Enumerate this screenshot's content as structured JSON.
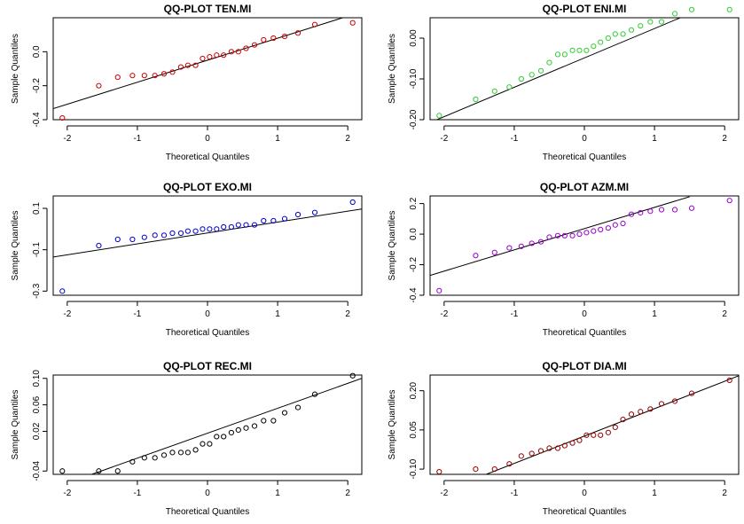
{
  "chart_data": [
    {
      "type": "scatter",
      "title": "QQ-PLOT TEN.MI",
      "xlabel": "Theoretical Quantiles",
      "ylabel": "Sample Quantiles",
      "color": "#cc0000",
      "xlim": [
        -2.2,
        2.2
      ],
      "ylim": [
        -0.4,
        0.2
      ],
      "xticks": [
        -2,
        -1,
        0,
        1,
        2
      ],
      "xticklabels": [
        "-2",
        "-1",
        "0",
        "1",
        "2"
      ],
      "yticks": [
        -0.4,
        -0.2,
        0.0
      ],
      "yticklabels": [
        "-0.4",
        "-0.2",
        "0.0"
      ],
      "points": [
        [
          -2.07,
          -0.39
        ],
        [
          -1.55,
          -0.2
        ],
        [
          -1.28,
          -0.15
        ],
        [
          -1.07,
          -0.14
        ],
        [
          -0.9,
          -0.14
        ],
        [
          -0.75,
          -0.14
        ],
        [
          -0.62,
          -0.13
        ],
        [
          -0.5,
          -0.12
        ],
        [
          -0.38,
          -0.09
        ],
        [
          -0.28,
          -0.08
        ],
        [
          -0.17,
          -0.08
        ],
        [
          -0.07,
          -0.04
        ],
        [
          0.03,
          -0.03
        ],
        [
          0.13,
          -0.02
        ],
        [
          0.23,
          -0.02
        ],
        [
          0.34,
          0.0
        ],
        [
          0.44,
          0.0
        ],
        [
          0.55,
          0.02
        ],
        [
          0.67,
          0.04
        ],
        [
          0.8,
          0.07
        ],
        [
          0.94,
          0.08
        ],
        [
          1.1,
          0.09
        ],
        [
          1.29,
          0.11
        ],
        [
          1.53,
          0.16
        ],
        [
          2.07,
          0.17
        ]
      ],
      "line": [
        [
          -2.2,
          -0.335
        ],
        [
          2.2,
          0.235
        ]
      ]
    },
    {
      "type": "scatter",
      "title": "QQ-PLOT ENI.MI",
      "xlabel": "Theoretical Quantiles",
      "ylabel": "Sample Quantiles",
      "color": "#33cc33",
      "xlim": [
        -2.2,
        2.2
      ],
      "ylim": [
        -0.2,
        0.05
      ],
      "xticks": [
        -2,
        -1,
        0,
        1,
        2
      ],
      "xticklabels": [
        "-2",
        "-1",
        "0",
        "1",
        "2"
      ],
      "yticks": [
        -0.2,
        -0.1,
        0.0
      ],
      "yticklabels": [
        "-0.20",
        "-0.10",
        "0.00"
      ],
      "points": [
        [
          -2.07,
          -0.19
        ],
        [
          -1.55,
          -0.15
        ],
        [
          -1.28,
          -0.13
        ],
        [
          -1.07,
          -0.12
        ],
        [
          -0.9,
          -0.1
        ],
        [
          -0.75,
          -0.09
        ],
        [
          -0.62,
          -0.08
        ],
        [
          -0.5,
          -0.06
        ],
        [
          -0.38,
          -0.04
        ],
        [
          -0.28,
          -0.04
        ],
        [
          -0.17,
          -0.03
        ],
        [
          -0.07,
          -0.03
        ],
        [
          0.03,
          -0.03
        ],
        [
          0.13,
          -0.02
        ],
        [
          0.23,
          -0.01
        ],
        [
          0.34,
          0.0
        ],
        [
          0.44,
          0.01
        ],
        [
          0.55,
          0.01
        ],
        [
          0.67,
          0.02
        ],
        [
          0.8,
          0.03
        ],
        [
          0.94,
          0.04
        ],
        [
          1.1,
          0.04
        ],
        [
          1.29,
          0.06
        ],
        [
          1.53,
          0.07
        ],
        [
          2.07,
          0.07
        ]
      ],
      "line": [
        [
          -2.2,
          -0.207
        ],
        [
          2.2,
          0.11
        ]
      ]
    },
    {
      "type": "scatter",
      "title": "QQ-PLOT EXO.MI",
      "xlabel": "Theoretical Quantiles",
      "ylabel": "Sample Quantiles",
      "color": "#0000cc",
      "xlim": [
        -2.2,
        2.2
      ],
      "ylim": [
        -0.32,
        0.16
      ],
      "xticks": [
        -2,
        -1,
        0,
        1,
        2
      ],
      "xticklabels": [
        "-2",
        "-1",
        "0",
        "1",
        "2"
      ],
      "yticks": [
        -0.3,
        -0.1,
        0.1
      ],
      "yticklabels": [
        "-0.3",
        "-0.1",
        "0.1"
      ],
      "points": [
        [
          -2.07,
          -0.3
        ],
        [
          -1.55,
          -0.08
        ],
        [
          -1.28,
          -0.05
        ],
        [
          -1.07,
          -0.05
        ],
        [
          -0.9,
          -0.04
        ],
        [
          -0.75,
          -0.03
        ],
        [
          -0.62,
          -0.03
        ],
        [
          -0.5,
          -0.02
        ],
        [
          -0.38,
          -0.02
        ],
        [
          -0.28,
          -0.01
        ],
        [
          -0.17,
          -0.01
        ],
        [
          -0.07,
          0.0
        ],
        [
          0.03,
          0.0
        ],
        [
          0.13,
          0.0
        ],
        [
          0.23,
          0.01
        ],
        [
          0.34,
          0.01
        ],
        [
          0.44,
          0.02
        ],
        [
          0.55,
          0.02
        ],
        [
          0.67,
          0.02
        ],
        [
          0.8,
          0.04
        ],
        [
          0.94,
          0.04
        ],
        [
          1.1,
          0.05
        ],
        [
          1.29,
          0.07
        ],
        [
          1.53,
          0.08
        ],
        [
          2.07,
          0.13
        ]
      ],
      "line": [
        [
          -2.2,
          -0.135
        ],
        [
          2.2,
          0.097
        ]
      ]
    },
    {
      "type": "scatter",
      "title": "QQ-PLOT AZM.MI",
      "xlabel": "Theoretical Quantiles",
      "ylabel": "Sample Quantiles",
      "color": "#9900cc",
      "xlim": [
        -2.2,
        2.2
      ],
      "ylim": [
        -0.4,
        0.25
      ],
      "xticks": [
        -2,
        -1,
        0,
        1,
        2
      ],
      "xticklabels": [
        "-2",
        "-1",
        "0",
        "1",
        "2"
      ],
      "yticks": [
        -0.4,
        -0.2,
        0.0,
        0.2
      ],
      "yticklabels": [
        "-0.4",
        "-0.2",
        "0.0",
        "0.2"
      ],
      "points": [
        [
          -2.07,
          -0.37
        ],
        [
          -1.55,
          -0.14
        ],
        [
          -1.28,
          -0.12
        ],
        [
          -1.07,
          -0.09
        ],
        [
          -0.9,
          -0.08
        ],
        [
          -0.75,
          -0.06
        ],
        [
          -0.62,
          -0.05
        ],
        [
          -0.5,
          -0.02
        ],
        [
          -0.38,
          -0.01
        ],
        [
          -0.28,
          -0.01
        ],
        [
          -0.17,
          -0.01
        ],
        [
          -0.07,
          0.0
        ],
        [
          0.03,
          0.01
        ],
        [
          0.13,
          0.02
        ],
        [
          0.23,
          0.03
        ],
        [
          0.34,
          0.04
        ],
        [
          0.44,
          0.06
        ],
        [
          0.55,
          0.07
        ],
        [
          0.67,
          0.13
        ],
        [
          0.8,
          0.14
        ],
        [
          0.94,
          0.15
        ],
        [
          1.1,
          0.16
        ],
        [
          1.29,
          0.16
        ],
        [
          1.53,
          0.17
        ],
        [
          2.07,
          0.22
        ]
      ],
      "line": [
        [
          -2.2,
          -0.27
        ],
        [
          1.5,
          0.245
        ]
      ]
    },
    {
      "type": "scatter",
      "title": "QQ-PLOT REC.MI",
      "xlabel": "Theoretical Quantiles",
      "ylabel": "Sample Quantiles",
      "color": "#000000",
      "xlim": [
        -2.2,
        2.2
      ],
      "ylim": [
        -0.045,
        0.105
      ],
      "xticks": [
        -2,
        -1,
        0,
        1,
        2
      ],
      "xticklabels": [
        "-2",
        "-1",
        "0",
        "1",
        "2"
      ],
      "yticks": [
        -0.04,
        0.02,
        0.06,
        0.1
      ],
      "yticklabels": [
        "-0.04",
        "0.02",
        "0.06",
        "0.10"
      ],
      "points": [
        [
          -2.07,
          -0.04
        ],
        [
          -1.55,
          -0.04
        ],
        [
          -1.28,
          -0.04
        ],
        [
          -1.07,
          -0.026
        ],
        [
          -0.9,
          -0.02
        ],
        [
          -0.75,
          -0.02
        ],
        [
          -0.62,
          -0.016
        ],
        [
          -0.5,
          -0.012
        ],
        [
          -0.38,
          -0.012
        ],
        [
          -0.28,
          -0.012
        ],
        [
          -0.17,
          -0.008
        ],
        [
          -0.07,
          0.001
        ],
        [
          0.03,
          0.001
        ],
        [
          0.13,
          0.012
        ],
        [
          0.23,
          0.012
        ],
        [
          0.34,
          0.018
        ],
        [
          0.44,
          0.022
        ],
        [
          0.55,
          0.025
        ],
        [
          0.67,
          0.028
        ],
        [
          0.8,
          0.036
        ],
        [
          0.94,
          0.036
        ],
        [
          1.1,
          0.048
        ],
        [
          1.29,
          0.056
        ],
        [
          1.53,
          0.076
        ],
        [
          2.07,
          0.104
        ]
      ],
      "line": [
        [
          -1.65,
          -0.045
        ],
        [
          2.2,
          0.1
        ]
      ]
    },
    {
      "type": "scatter",
      "title": "QQ-PLOT DIA.MI",
      "xlabel": "Theoretical Quantiles",
      "ylabel": "Sample Quantiles",
      "color": "#990000",
      "xlim": [
        -2.2,
        2.2
      ],
      "ylim": [
        -0.12,
        0.26
      ],
      "xticks": [
        -2,
        -1,
        0,
        1,
        2
      ],
      "xticklabels": [
        "-2",
        "-1",
        "0",
        "1",
        "2"
      ],
      "yticks": [
        -0.1,
        0.05,
        0.2
      ],
      "yticklabels": [
        "-0.10",
        "0.05",
        "0.20"
      ],
      "points": [
        [
          -2.07,
          -0.11
        ],
        [
          -1.55,
          -0.1
        ],
        [
          -1.28,
          -0.1
        ],
        [
          -1.07,
          -0.08
        ],
        [
          -0.9,
          -0.05
        ],
        [
          -0.75,
          -0.04
        ],
        [
          -0.62,
          -0.03
        ],
        [
          -0.5,
          -0.02
        ],
        [
          -0.38,
          -0.02
        ],
        [
          -0.28,
          -0.01
        ],
        [
          -0.17,
          0.0
        ],
        [
          -0.07,
          0.01
        ],
        [
          0.03,
          0.03
        ],
        [
          0.13,
          0.03
        ],
        [
          0.23,
          0.03
        ],
        [
          0.34,
          0.04
        ],
        [
          0.44,
          0.06
        ],
        [
          0.55,
          0.09
        ],
        [
          0.67,
          0.11
        ],
        [
          0.8,
          0.12
        ],
        [
          0.94,
          0.13
        ],
        [
          1.1,
          0.15
        ],
        [
          1.29,
          0.16
        ],
        [
          1.53,
          0.19
        ],
        [
          2.07,
          0.24
        ]
      ],
      "line": [
        [
          -1.4,
          -0.12
        ],
        [
          2.2,
          0.257
        ]
      ]
    }
  ]
}
